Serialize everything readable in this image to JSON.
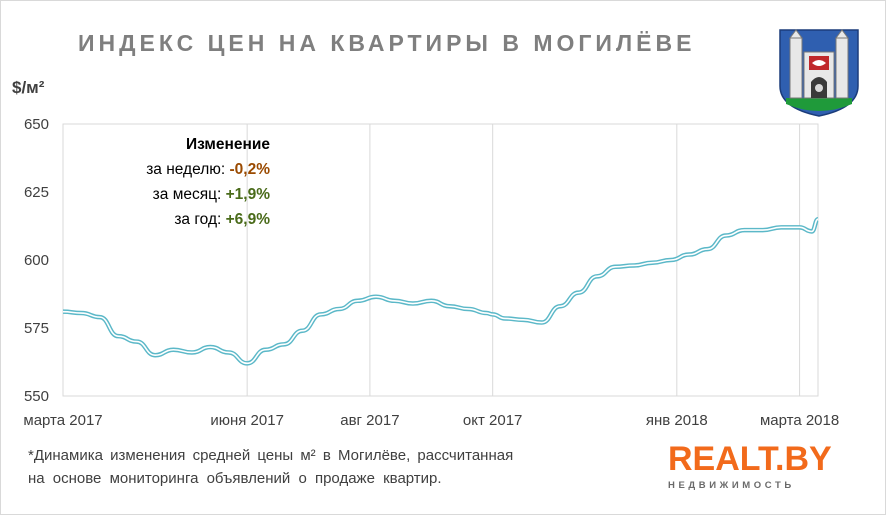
{
  "title": "ИНДЕКС ЦЕН НА КВАРТИРЫ В МОГИЛЁВЕ",
  "unit": "$/м²",
  "stats": {
    "heading": "Изменение",
    "week_label": "за неделю:",
    "week_value": "-0,2%",
    "month_label": "за месяц:",
    "month_value": "+1,9%",
    "year_label": "за год:",
    "year_value": "+6,9%"
  },
  "footnote": {
    "line1": "*Динамика изменения средней цены м² в Могилёве, рассчитанная",
    "line2": "на основе мониторинга объявлений о продаже квартир."
  },
  "brand": {
    "name": "REALT.BY",
    "tagline": "НЕДВИЖИМОСТЬ"
  },
  "colors": {
    "line": "#5bb8c8",
    "grid": "#d9d9d9",
    "brand": "#f26a1b",
    "negative": "#9a4a00",
    "positive": "#4a6b1a"
  },
  "chart_data": {
    "type": "line",
    "title": "ИНДЕКС ЦЕН НА КВАРТИРЫ В МОГИЛЁВЕ",
    "ylabel": "$/м²",
    "xlabel": "",
    "ylim": [
      550,
      650
    ],
    "yticks": [
      550,
      575,
      600,
      625,
      650
    ],
    "xlim": [
      0,
      12.3
    ],
    "xticks": [
      {
        "label": "марта 2017",
        "x": 0
      },
      {
        "label": "июня 2017",
        "x": 3
      },
      {
        "label": "авг 2017",
        "x": 5
      },
      {
        "label": "окт 2017",
        "x": 7
      },
      {
        "label": "янв 2018",
        "x": 10
      },
      {
        "label": "марта 2018",
        "x": 12
      }
    ],
    "grid": "vertical",
    "series": [
      {
        "x": [
          0,
          0.3,
          0.6,
          0.9,
          1.2,
          1.5,
          1.8,
          2.1,
          2.4,
          2.7,
          3.0,
          3.3,
          3.6,
          3.9,
          4.2,
          4.5,
          4.8,
          5.1,
          5.4,
          5.7,
          6.0,
          6.3,
          6.6,
          6.9,
          7.0,
          7.2,
          7.5,
          7.8,
          8.1,
          8.4,
          8.7,
          9.0,
          9.3,
          9.6,
          9.9,
          10.2,
          10.5,
          10.8,
          11.1,
          11.4,
          11.7,
          12.0,
          12.2,
          12.3
        ],
        "values": [
          581,
          580.5,
          579,
          572,
          570,
          565,
          567,
          566,
          568,
          566,
          562,
          567,
          569,
          574,
          580,
          582,
          585,
          586.5,
          585,
          584,
          585,
          583,
          582,
          580.5,
          580,
          578.5,
          578,
          577,
          583,
          588,
          594,
          597.5,
          598,
          599,
          600,
          602,
          604,
          609,
          611,
          611,
          612,
          612,
          610.5,
          615
        ]
      }
    ]
  }
}
